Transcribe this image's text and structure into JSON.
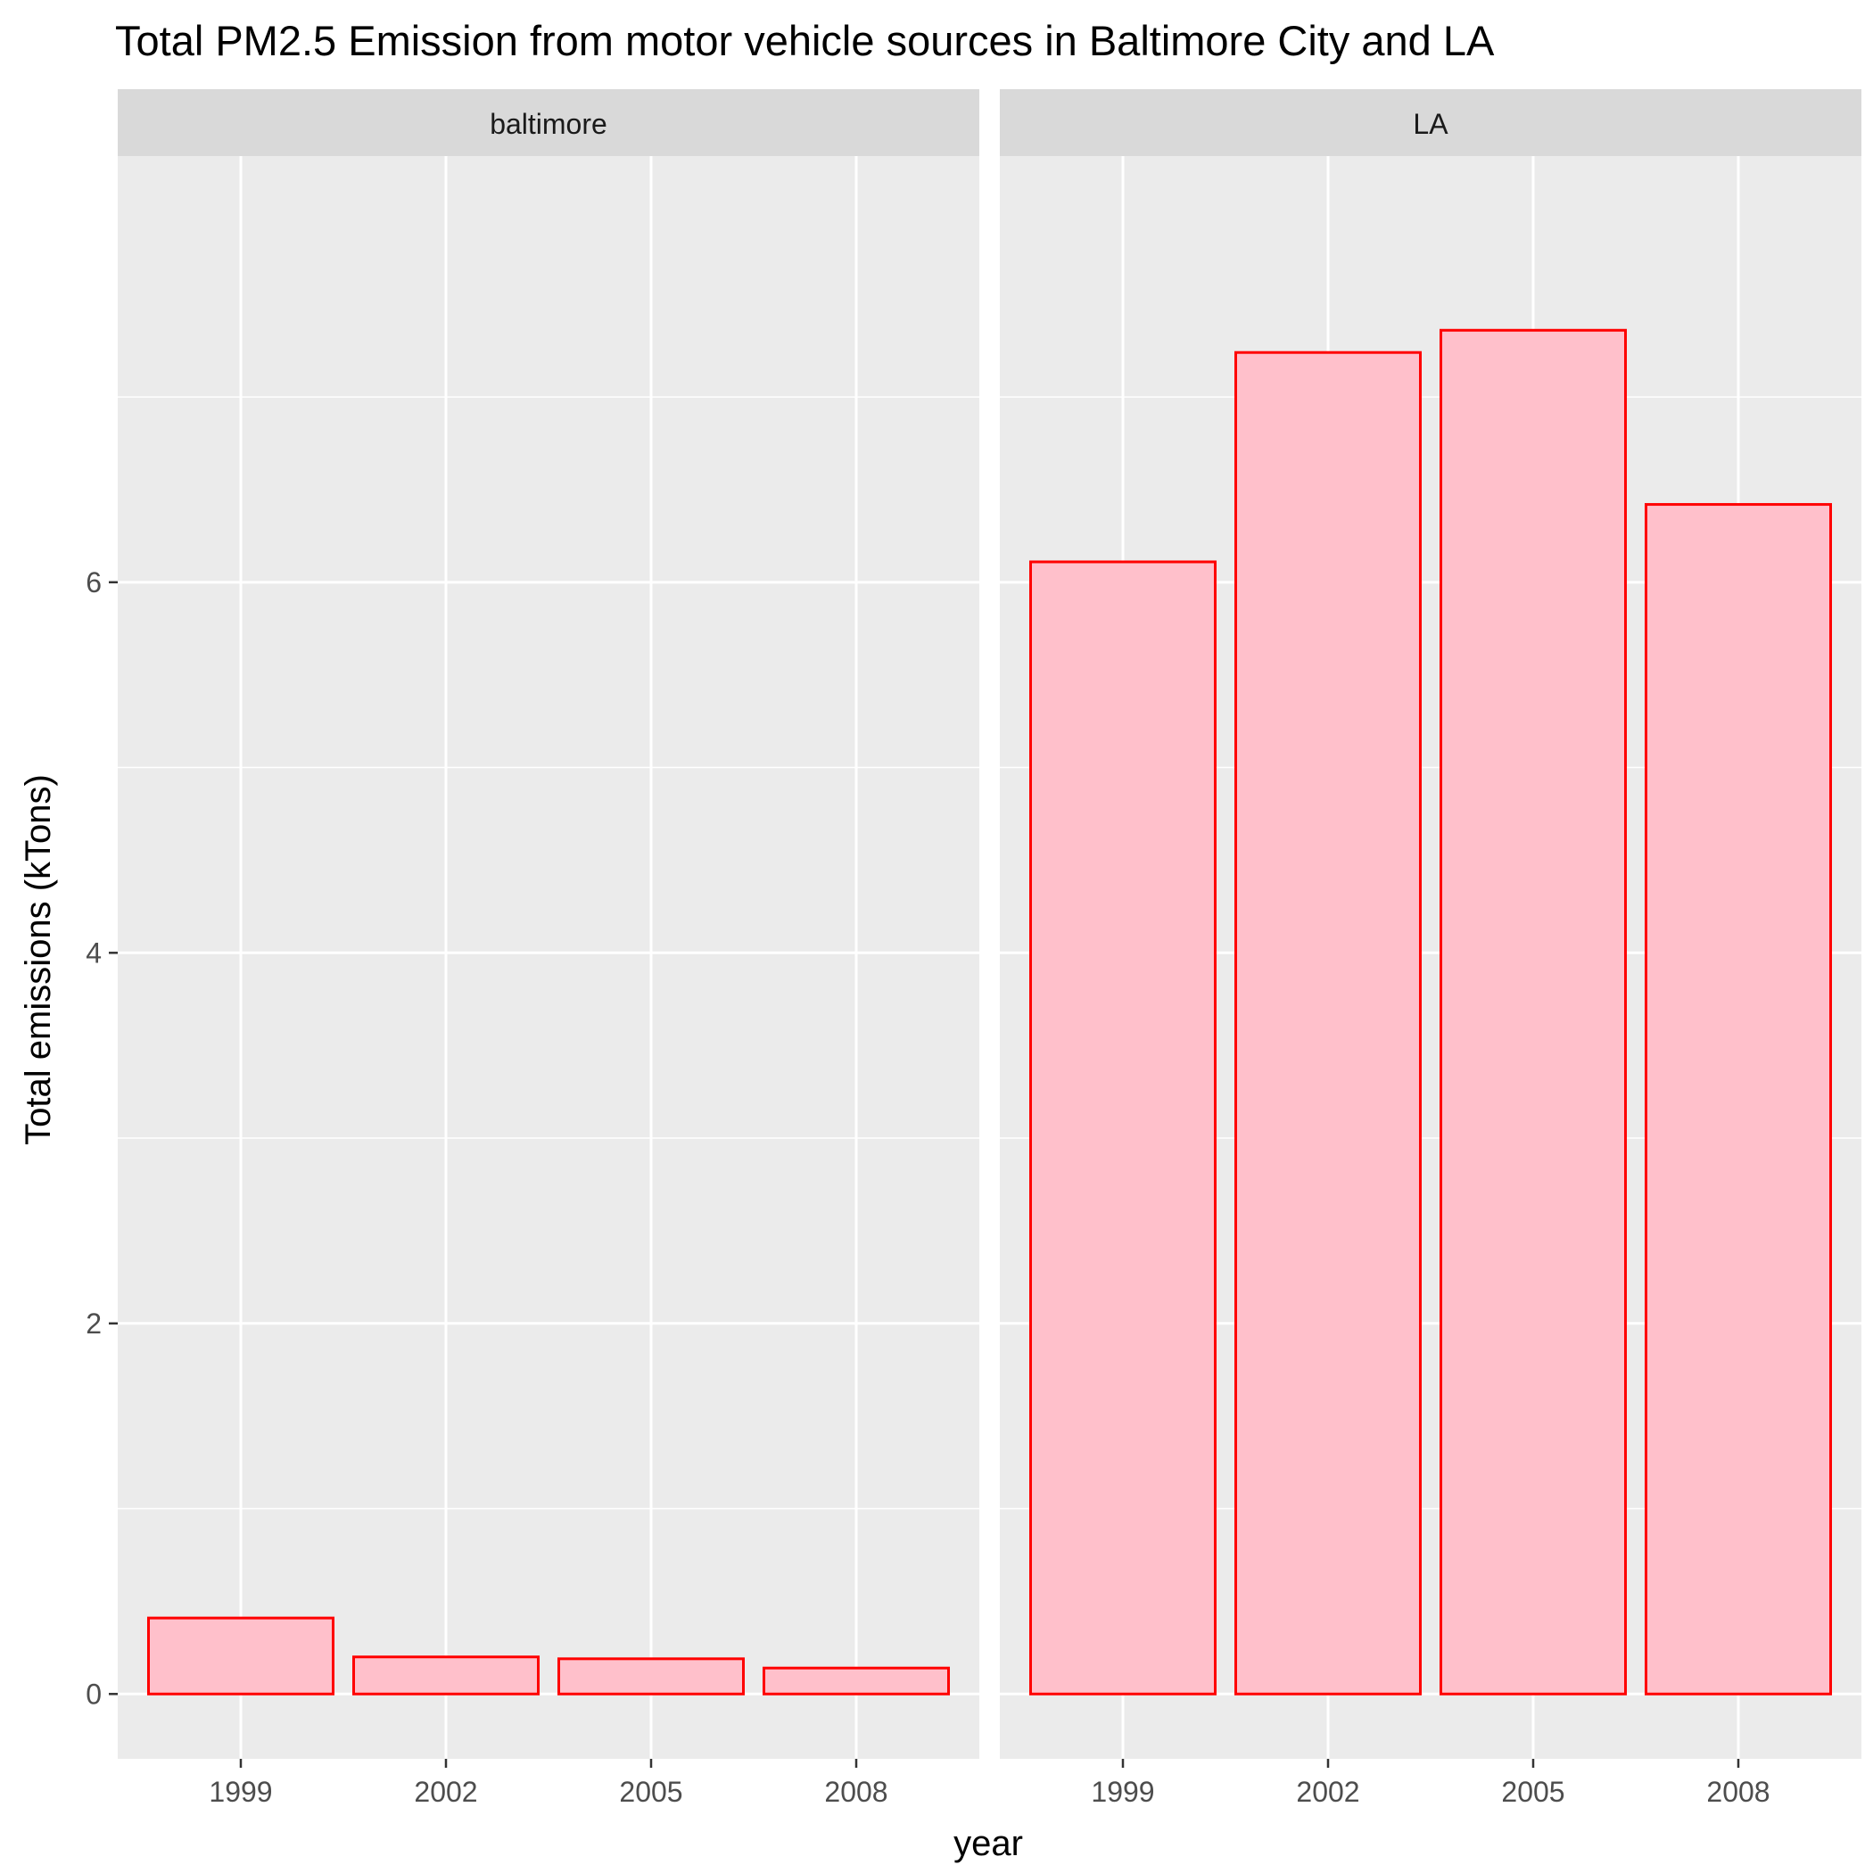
{
  "chart_data": {
    "type": "bar",
    "title": "Total PM2.5 Emission from motor vehicle sources in Baltimore City and LA",
    "xlabel": "year",
    "ylabel": "Total emissions (kTons)",
    "categories": [
      "1999",
      "2002",
      "2005",
      "2008"
    ],
    "yticks": [
      0,
      2,
      4,
      6
    ],
    "ylim": [
      -0.35,
      8.3
    ],
    "grid": true,
    "legend": "none",
    "colors": {
      "bar_fill": "#ffc0cb",
      "bar_stroke": "#ff0000",
      "panel_bg": "#ebebeb",
      "strip_bg": "#d9d9d9",
      "grid": "#ffffff"
    },
    "facets": [
      {
        "label": "baltimore",
        "values": [
          0.41,
          0.2,
          0.19,
          0.14
        ]
      },
      {
        "label": "LA",
        "values": [
          6.11,
          7.24,
          7.36,
          6.42
        ]
      }
    ]
  }
}
